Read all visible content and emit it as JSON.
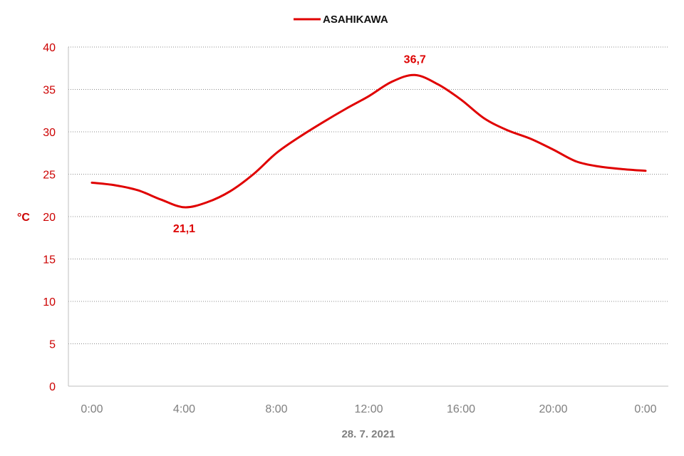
{
  "chart_data": {
    "type": "line",
    "title": "",
    "xlabel": "28. 7. 2021",
    "ylabel": "°C",
    "ylim": [
      0,
      40
    ],
    "yticks": [
      0,
      5,
      10,
      15,
      20,
      25,
      30,
      35,
      40
    ],
    "xticks": [
      "0:00",
      "4:00",
      "8:00",
      "12:00",
      "16:00",
      "20:00",
      "0:00"
    ],
    "x_hours": [
      0,
      1,
      2,
      3,
      4,
      5,
      6,
      7,
      8,
      9,
      10,
      11,
      12,
      13,
      14,
      15,
      16,
      17,
      18,
      19,
      20,
      21,
      22,
      23,
      24
    ],
    "grid": true,
    "legend_position": "top-center",
    "series": [
      {
        "name": "ASAHIKAWA",
        "color": "#e00000",
        "values": [
          24.0,
          23.7,
          23.1,
          22.0,
          21.1,
          21.7,
          23.0,
          25.0,
          27.5,
          29.4,
          31.1,
          32.7,
          34.2,
          35.9,
          36.7,
          35.6,
          33.8,
          31.6,
          30.2,
          29.2,
          27.9,
          26.5,
          25.9,
          25.6,
          25.4
        ]
      }
    ],
    "annotations": [
      {
        "text": "21,1",
        "x": 4,
        "y": 21.1,
        "position": "below"
      },
      {
        "text": "36,7",
        "x": 14,
        "y": 36.7,
        "position": "above"
      }
    ]
  }
}
